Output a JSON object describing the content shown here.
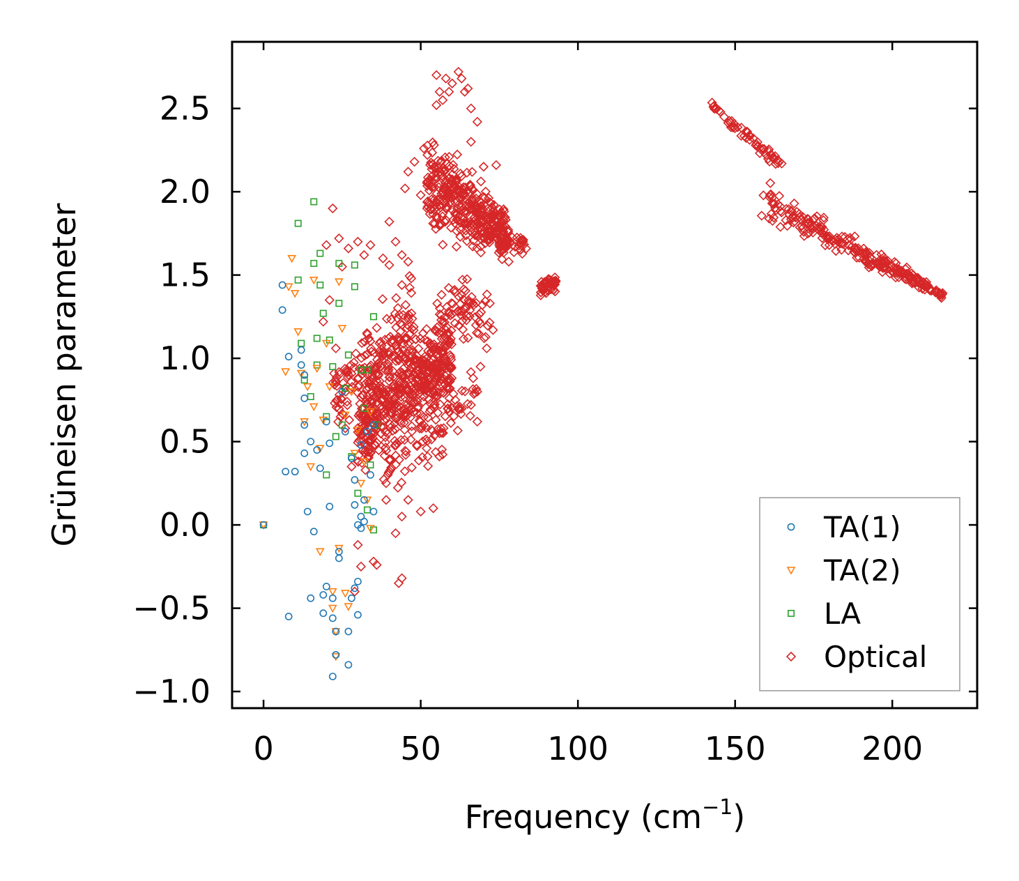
{
  "chart_data": {
    "type": "scatter",
    "title": "",
    "xlabel": {
      "base": "Frequency (cm",
      "sup": "−1",
      "tail": ")"
    },
    "ylabel": "Grüneisen parameter",
    "xlim": [
      -10,
      227
    ],
    "ylim": [
      -1.1,
      2.9
    ],
    "x_ticks": [
      0,
      50,
      100,
      150,
      200
    ],
    "x_tick_labels": [
      "0",
      "50",
      "100",
      "150",
      "200"
    ],
    "y_ticks": [
      -1.0,
      -0.5,
      0.0,
      0.5,
      1.0,
      1.5,
      2.0,
      2.5
    ],
    "y_tick_labels": [
      "−1.0",
      "−0.5",
      "0.0",
      "0.5",
      "1.0",
      "1.5",
      "2.0",
      "2.5"
    ],
    "grid": false,
    "legend_position": "lower-right",
    "series": [
      {
        "name": "TA(1)",
        "marker": "circle",
        "color": "#1f77b4",
        "points": [
          [
            0,
            0.0
          ],
          [
            6,
            1.44
          ],
          [
            6,
            1.29
          ],
          [
            7,
            0.32
          ],
          [
            8,
            1.01
          ],
          [
            8,
            -0.55
          ],
          [
            10,
            0.32
          ],
          [
            12,
            1.05
          ],
          [
            12,
            0.96
          ],
          [
            13,
            0.9
          ],
          [
            13,
            0.76
          ],
          [
            13,
            0.6
          ],
          [
            13,
            0.43
          ],
          [
            14,
            0.08
          ],
          [
            15,
            0.5
          ],
          [
            15,
            -0.44
          ],
          [
            16,
            -0.04
          ],
          [
            17,
            0.45
          ],
          [
            18,
            0.34
          ],
          [
            19,
            -0.53
          ],
          [
            19,
            -0.42
          ],
          [
            20,
            -0.37
          ],
          [
            20,
            0.62
          ],
          [
            21,
            0.49
          ],
          [
            21,
            0.11
          ],
          [
            22,
            -0.56
          ],
          [
            22,
            -0.44
          ],
          [
            22,
            -0.91
          ],
          [
            23,
            -0.78
          ],
          [
            23,
            -0.64
          ],
          [
            24,
            -0.2
          ],
          [
            24,
            -0.16
          ],
          [
            25,
            0.8
          ],
          [
            26,
            0.56
          ],
          [
            27,
            -0.64
          ],
          [
            27,
            -0.84
          ],
          [
            28,
            -0.44
          ],
          [
            28,
            0.4
          ],
          [
            29,
            0.27
          ],
          [
            29,
            0.12
          ],
          [
            29,
            -0.38
          ],
          [
            30,
            0.0
          ],
          [
            30,
            -0.34
          ],
          [
            30,
            -0.54
          ],
          [
            31,
            0.05
          ],
          [
            31,
            -0.02
          ],
          [
            31,
            0.48
          ],
          [
            32,
            0.02
          ],
          [
            32,
            0.15
          ],
          [
            33,
            0.56
          ],
          [
            34,
            0.3
          ],
          [
            35,
            0.6
          ],
          [
            35,
            0.08
          ]
        ]
      },
      {
        "name": "TA(2)",
        "marker": "triangle-down",
        "color": "#ff7f0e",
        "points": [
          [
            0,
            0.0
          ],
          [
            7,
            0.92
          ],
          [
            8,
            1.43
          ],
          [
            9,
            1.6
          ],
          [
            10,
            1.39
          ],
          [
            11,
            1.16
          ],
          [
            12,
            0.91
          ],
          [
            13,
            0.62
          ],
          [
            14,
            0.83
          ],
          [
            15,
            0.35
          ],
          [
            16,
            1.47
          ],
          [
            16,
            0.71
          ],
          [
            17,
            0.94
          ],
          [
            18,
            0.46
          ],
          [
            18,
            -0.16
          ],
          [
            19,
            0.63
          ],
          [
            20,
            1.09
          ],
          [
            21,
            0.83
          ],
          [
            22,
            -0.4
          ],
          [
            22,
            -0.5
          ],
          [
            23,
            -0.64
          ],
          [
            23,
            -0.79
          ],
          [
            24,
            1.46
          ],
          [
            24,
            -0.14
          ],
          [
            25,
            1.18
          ],
          [
            26,
            0.66
          ],
          [
            26,
            -0.41
          ],
          [
            27,
            -0.49
          ],
          [
            28,
            0.8
          ],
          [
            29,
            0.43
          ],
          [
            30,
            0.57
          ],
          [
            31,
            0.25
          ],
          [
            32,
            0.38
          ],
          [
            33,
            0.15
          ],
          [
            34,
            0.68
          ],
          [
            34,
            -0.02
          ]
        ]
      },
      {
        "name": "LA",
        "marker": "square",
        "color": "#2ca02c",
        "points": [
          [
            0,
            0.0
          ],
          [
            11,
            1.81
          ],
          [
            11,
            1.47
          ],
          [
            12,
            1.09
          ],
          [
            13,
            0.87
          ],
          [
            15,
            0.77
          ],
          [
            16,
            1.94
          ],
          [
            16,
            1.57
          ],
          [
            17,
            1.12
          ],
          [
            17,
            0.96
          ],
          [
            18,
            1.63
          ],
          [
            18,
            1.44
          ],
          [
            19,
            1.27
          ],
          [
            20,
            0.65
          ],
          [
            20,
            0.3
          ],
          [
            21,
            1.11
          ],
          [
            22,
            0.95
          ],
          [
            23,
            0.53
          ],
          [
            24,
            1.57
          ],
          [
            24,
            1.33
          ],
          [
            25,
            0.6
          ],
          [
            26,
            0.82
          ],
          [
            27,
            1.02
          ],
          [
            28,
            0.41
          ],
          [
            29,
            1.56
          ],
          [
            29,
            1.43
          ],
          [
            30,
            0.19
          ],
          [
            31,
            0.93
          ],
          [
            32,
            0.7
          ],
          [
            33,
            0.93
          ],
          [
            33,
            0.09
          ],
          [
            34,
            0.36
          ],
          [
            35,
            1.25
          ],
          [
            35,
            -0.03
          ],
          [
            36,
            0.6
          ]
        ]
      },
      {
        "name": "Optical",
        "marker": "diamond",
        "color": "#d62728",
        "clusters": [
          {
            "x": [
              30,
              60
            ],
            "y_at_x0": [
              0.25,
              0.95
            ],
            "y_at_x1": [
              0.65,
              1.35
            ],
            "count": 520
          },
          {
            "x": [
              22,
              48
            ],
            "y_at_x0": [
              0.45,
              1.05
            ],
            "y_at_x1": [
              0.85,
              1.6
            ],
            "count": 160
          },
          {
            "x": [
              52,
              78
            ],
            "y_at_x0": [
              1.65,
              2.45
            ],
            "y_at_x1": [
              1.55,
              1.95
            ],
            "count": 380
          },
          {
            "x": [
              38,
              68
            ],
            "y_at_x0": [
              0.0,
              0.6
            ],
            "y_at_x1": [
              0.55,
              1.05
            ],
            "count": 90
          },
          {
            "x": [
              55,
              72
            ],
            "y_at_x0": [
              1.0,
              1.6
            ],
            "y_at_x1": [
              1.05,
              1.5
            ],
            "count": 70
          },
          {
            "x": [
              88,
              93
            ],
            "y_at_x0": [
              1.35,
              1.5
            ],
            "y_at_x1": [
              1.4,
              1.5
            ],
            "count": 45
          },
          {
            "x": [
              142,
              165
            ],
            "y_at_x0": [
              2.5,
              2.55
            ],
            "y_at_x1": [
              2.08,
              2.22
            ],
            "count": 55
          },
          {
            "x": [
              158,
              216
            ],
            "y_at_x0": [
              1.78,
              2.12
            ],
            "y_at_x1": [
              1.35,
              1.42
            ],
            "count": 240
          },
          {
            "x": [
              74,
              84
            ],
            "y_at_x0": [
              1.6,
              1.8
            ],
            "y_at_x1": [
              1.62,
              1.75
            ],
            "count": 40
          }
        ],
        "points": [
          [
            22,
            1.9
          ],
          [
            24,
            1.72
          ],
          [
            25,
            1.55
          ],
          [
            27,
            1.66
          ],
          [
            30,
            1.7
          ],
          [
            32,
            1.62
          ],
          [
            34,
            1.68
          ],
          [
            20,
            1.68
          ],
          [
            19,
            1.22
          ],
          [
            21,
            1.35
          ],
          [
            23,
            1.06
          ],
          [
            27,
            0.9
          ],
          [
            26,
            0.58
          ],
          [
            28,
            0.35
          ],
          [
            29,
            -0.4
          ],
          [
            31,
            -0.25
          ],
          [
            30,
            -0.12
          ],
          [
            35,
            -0.22
          ],
          [
            36,
            -0.24
          ],
          [
            43,
            -0.35
          ],
          [
            44,
            -0.32
          ],
          [
            39,
            0.15
          ],
          [
            42,
            -0.05
          ],
          [
            44,
            0.05
          ],
          [
            46,
            0.15
          ],
          [
            50,
            0.08
          ],
          [
            54,
            0.1
          ],
          [
            56,
            0.55
          ],
          [
            59,
            0.82
          ],
          [
            59,
            0.68
          ],
          [
            61,
            0.75
          ],
          [
            66,
            0.72
          ],
          [
            68,
            0.8
          ],
          [
            68,
            0.62
          ],
          [
            69,
            0.95
          ],
          [
            71,
            1.06
          ],
          [
            72,
            1.33
          ],
          [
            73,
            1.17
          ],
          [
            76,
            1.68
          ],
          [
            78,
            1.58
          ],
          [
            80,
            1.67
          ],
          [
            45,
            2.02
          ],
          [
            46,
            2.12
          ],
          [
            48,
            2.18
          ],
          [
            50,
            1.98
          ],
          [
            52,
            1.9
          ],
          [
            40,
            1.82
          ],
          [
            42,
            1.7
          ],
          [
            44,
            1.62
          ],
          [
            46,
            1.58
          ],
          [
            38,
            1.6
          ],
          [
            40,
            1.56
          ],
          [
            44,
            1.44
          ],
          [
            47,
            1.48
          ],
          [
            51,
            2.26
          ],
          [
            55,
            2.52
          ],
          [
            57,
            2.55
          ],
          [
            59,
            2.6
          ],
          [
            60,
            2.65
          ],
          [
            62,
            2.72
          ],
          [
            63,
            2.68
          ],
          [
            65,
            2.62
          ],
          [
            66,
            2.5
          ],
          [
            68,
            2.42
          ],
          [
            66,
            2.3
          ],
          [
            70,
            2.15
          ],
          [
            74,
            2.16
          ],
          [
            59,
            2.08
          ],
          [
            57,
            2.0
          ],
          [
            62,
            1.92
          ],
          [
            55,
            2.7
          ],
          [
            56,
            2.6
          ],
          [
            58,
            2.68
          ],
          [
            64,
            2.6
          ]
        ]
      }
    ]
  }
}
